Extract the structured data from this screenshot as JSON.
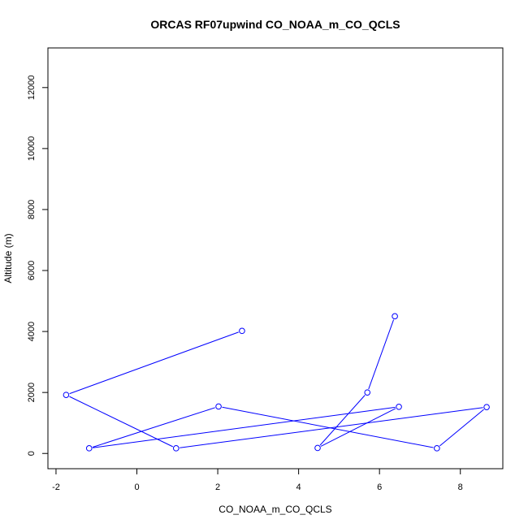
{
  "chart_data": {
    "type": "line",
    "title": "ORCAS RF07upwind CO_NOAA_m_CO_QCLS",
    "xlabel": "CO_NOAA_m_CO_QCLS",
    "ylabel": "Altitude (m)",
    "xlim": [
      -2.2,
      9.05
    ],
    "ylim": [
      -500,
      13300
    ],
    "xticks": [
      -2,
      0,
      2,
      4,
      6,
      8
    ],
    "yticks": [
      0,
      2000,
      4000,
      6000,
      8000,
      10000,
      12000
    ],
    "xtick_labels": [
      "-2",
      "0",
      "2",
      "4",
      "6",
      "8"
    ],
    "ytick_labels": [
      "0",
      "2000",
      "4000",
      "6000",
      "8000",
      "10000",
      "12000"
    ],
    "grid": false,
    "series": [
      {
        "color": "#0000ff",
        "marker": "open-circle",
        "points": [
          {
            "x": 2.6,
            "y": 4020
          },
          {
            "x": -1.75,
            "y": 1920
          },
          {
            "x": 0.97,
            "y": 170
          },
          {
            "x": 8.65,
            "y": 1520
          },
          {
            "x": 7.42,
            "y": 170
          },
          {
            "x": 2.02,
            "y": 1540
          },
          {
            "x": -1.18,
            "y": 170
          },
          {
            "x": 6.48,
            "y": 1530
          },
          {
            "x": 4.47,
            "y": 180
          },
          {
            "x": 5.7,
            "y": 2000
          },
          {
            "x": 6.38,
            "y": 4500
          }
        ]
      }
    ]
  }
}
